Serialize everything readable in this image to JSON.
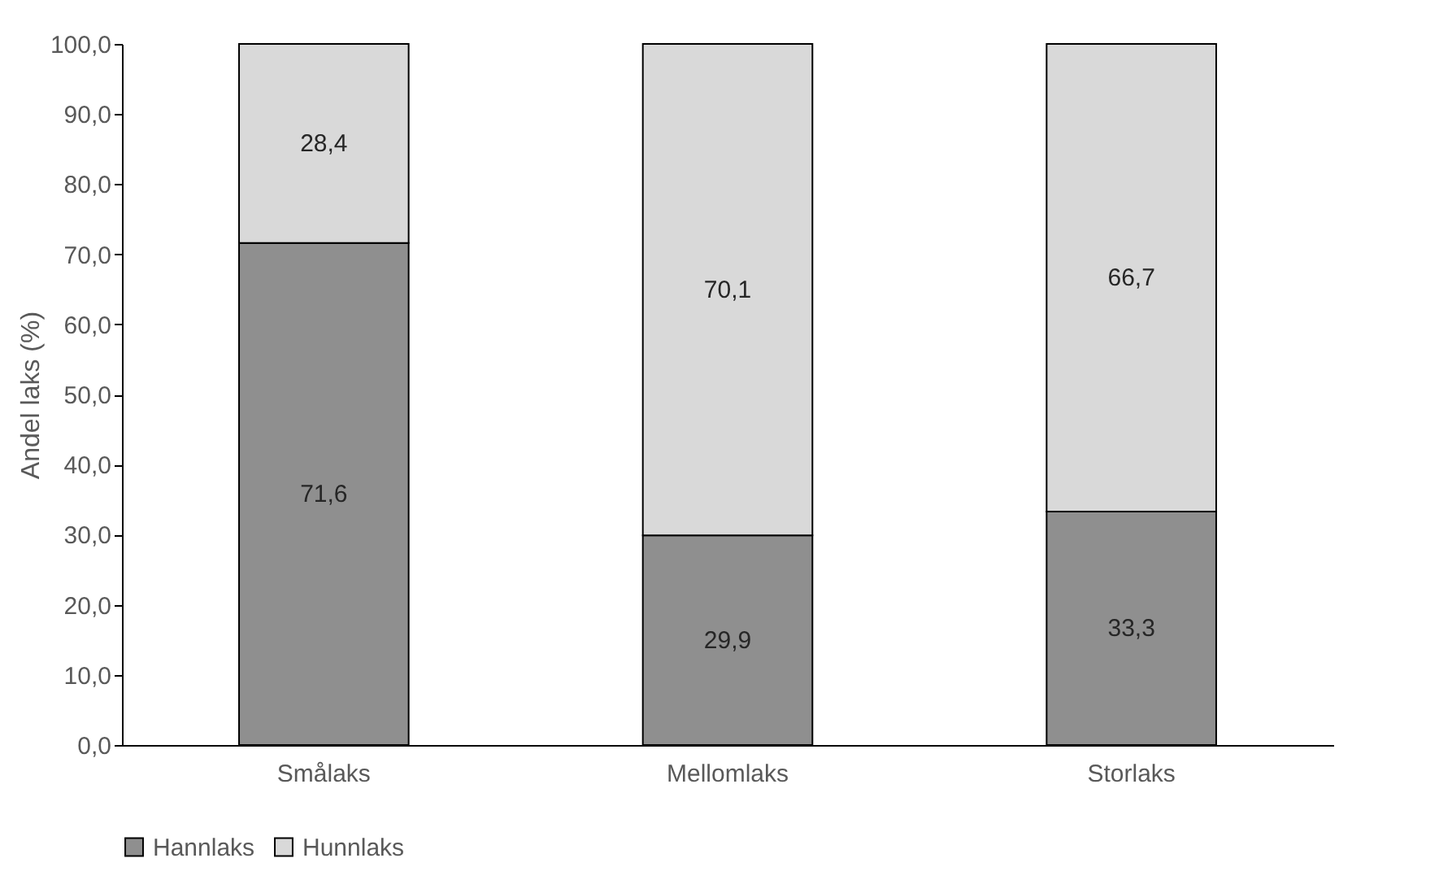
{
  "chart_data": {
    "type": "bar",
    "stacked": true,
    "ylabel": "Andel laks (%)",
    "categories": [
      "Smålaks",
      "Mellomlaks",
      "Storlaks"
    ],
    "series": [
      {
        "name": "Hannlaks",
        "color": "#8f8f8f",
        "values": [
          71.6,
          29.9,
          33.3
        ],
        "value_labels": [
          "71,6",
          "29,9",
          "33,3"
        ]
      },
      {
        "name": "Hunnlaks",
        "color": "#d9d9d9",
        "values": [
          28.4,
          70.1,
          66.7
        ],
        "value_labels": [
          "28,4",
          "70,1",
          "66,7"
        ]
      }
    ],
    "ylim": [
      0,
      100
    ],
    "yticks": [
      {
        "value": 0,
        "label": "0,0"
      },
      {
        "value": 10,
        "label": "10,0"
      },
      {
        "value": 20,
        "label": "20,0"
      },
      {
        "value": 30,
        "label": "30,0"
      },
      {
        "value": 40,
        "label": "40,0"
      },
      {
        "value": 50,
        "label": "50,0"
      },
      {
        "value": 60,
        "label": "60,0"
      },
      {
        "value": 70,
        "label": "70,0"
      },
      {
        "value": 80,
        "label": "80,0"
      },
      {
        "value": 90,
        "label": "90,0"
      },
      {
        "value": 100,
        "label": "100,0"
      }
    ],
    "grid": false,
    "legend": "bottom"
  }
}
